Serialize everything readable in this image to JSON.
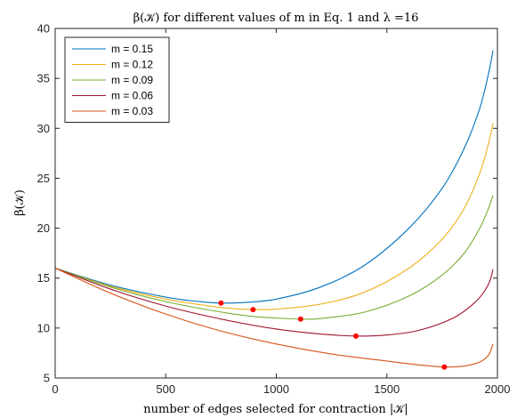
{
  "chart_data": {
    "type": "line",
    "title": "β(𝒦) for different values of m in Eq. 1 and λ =16",
    "xlabel": "number of edges selected for contraction |𝒦|",
    "ylabel": "β(𝒦)",
    "xlim": [
      0,
      2000
    ],
    "ylim": [
      5,
      40
    ],
    "xticks": [
      "0",
      "500",
      "1000",
      "1500",
      "2000"
    ],
    "yticks": [
      "5",
      "10",
      "15",
      "20",
      "25",
      "30",
      "35",
      "40"
    ],
    "grid": false,
    "legend_position": "top-left",
    "series": [
      {
        "name": "m = 0.15",
        "color": "#0072BD",
        "x": [
          0,
          250,
          500,
          650,
          750,
          850,
          1000,
          1200,
          1400,
          1600,
          1750,
          1850,
          1920,
          1960,
          1980
        ],
        "y": [
          16.0,
          14.3,
          13.1,
          12.65,
          12.5,
          12.55,
          12.9,
          14.1,
          16.3,
          20.0,
          24.0,
          28.0,
          32.0,
          35.5,
          37.8
        ]
      },
      {
        "name": "m = 0.12",
        "color": "#EDB120",
        "x": [
          0,
          250,
          500,
          700,
          800,
          900,
          1000,
          1200,
          1400,
          1600,
          1750,
          1850,
          1920,
          1960,
          1980
        ],
        "y": [
          16.0,
          14.2,
          12.9,
          12.2,
          11.95,
          11.85,
          11.9,
          12.4,
          13.6,
          16.0,
          18.9,
          22.0,
          25.5,
          28.5,
          30.5
        ]
      },
      {
        "name": "m = 0.09",
        "color": "#77AC30",
        "x": [
          0,
          250,
          500,
          750,
          900,
          1000,
          1110,
          1200,
          1400,
          1600,
          1750,
          1850,
          1920,
          1960,
          1980
        ],
        "y": [
          16.0,
          14.1,
          12.65,
          11.6,
          11.15,
          11.0,
          10.9,
          10.95,
          11.6,
          13.2,
          15.3,
          17.5,
          20.0,
          22.0,
          23.3
        ]
      },
      {
        "name": "m = 0.06",
        "color": "#A2142F",
        "x": [
          0,
          250,
          500,
          750,
          1000,
          1200,
          1360,
          1500,
          1650,
          1800,
          1900,
          1950,
          1970,
          1980
        ],
        "y": [
          16.0,
          13.9,
          12.2,
          10.9,
          9.9,
          9.4,
          9.2,
          9.3,
          9.8,
          11.0,
          12.6,
          14.0,
          15.0,
          15.9
        ]
      },
      {
        "name": "m = 0.03",
        "color": "#D95319",
        "x": [
          0,
          250,
          500,
          750,
          1000,
          1250,
          1500,
          1650,
          1760,
          1850,
          1920,
          1960,
          1980
        ],
        "y": [
          16.0,
          13.5,
          11.4,
          9.7,
          8.4,
          7.4,
          6.7,
          6.3,
          6.1,
          6.2,
          6.6,
          7.3,
          8.4
        ]
      }
    ],
    "markers": {
      "color": "#FF0000",
      "x": [
        750,
        895,
        1110,
        1360,
        1760
      ],
      "y": [
        12.5,
        11.85,
        10.9,
        9.2,
        6.1
      ]
    }
  }
}
